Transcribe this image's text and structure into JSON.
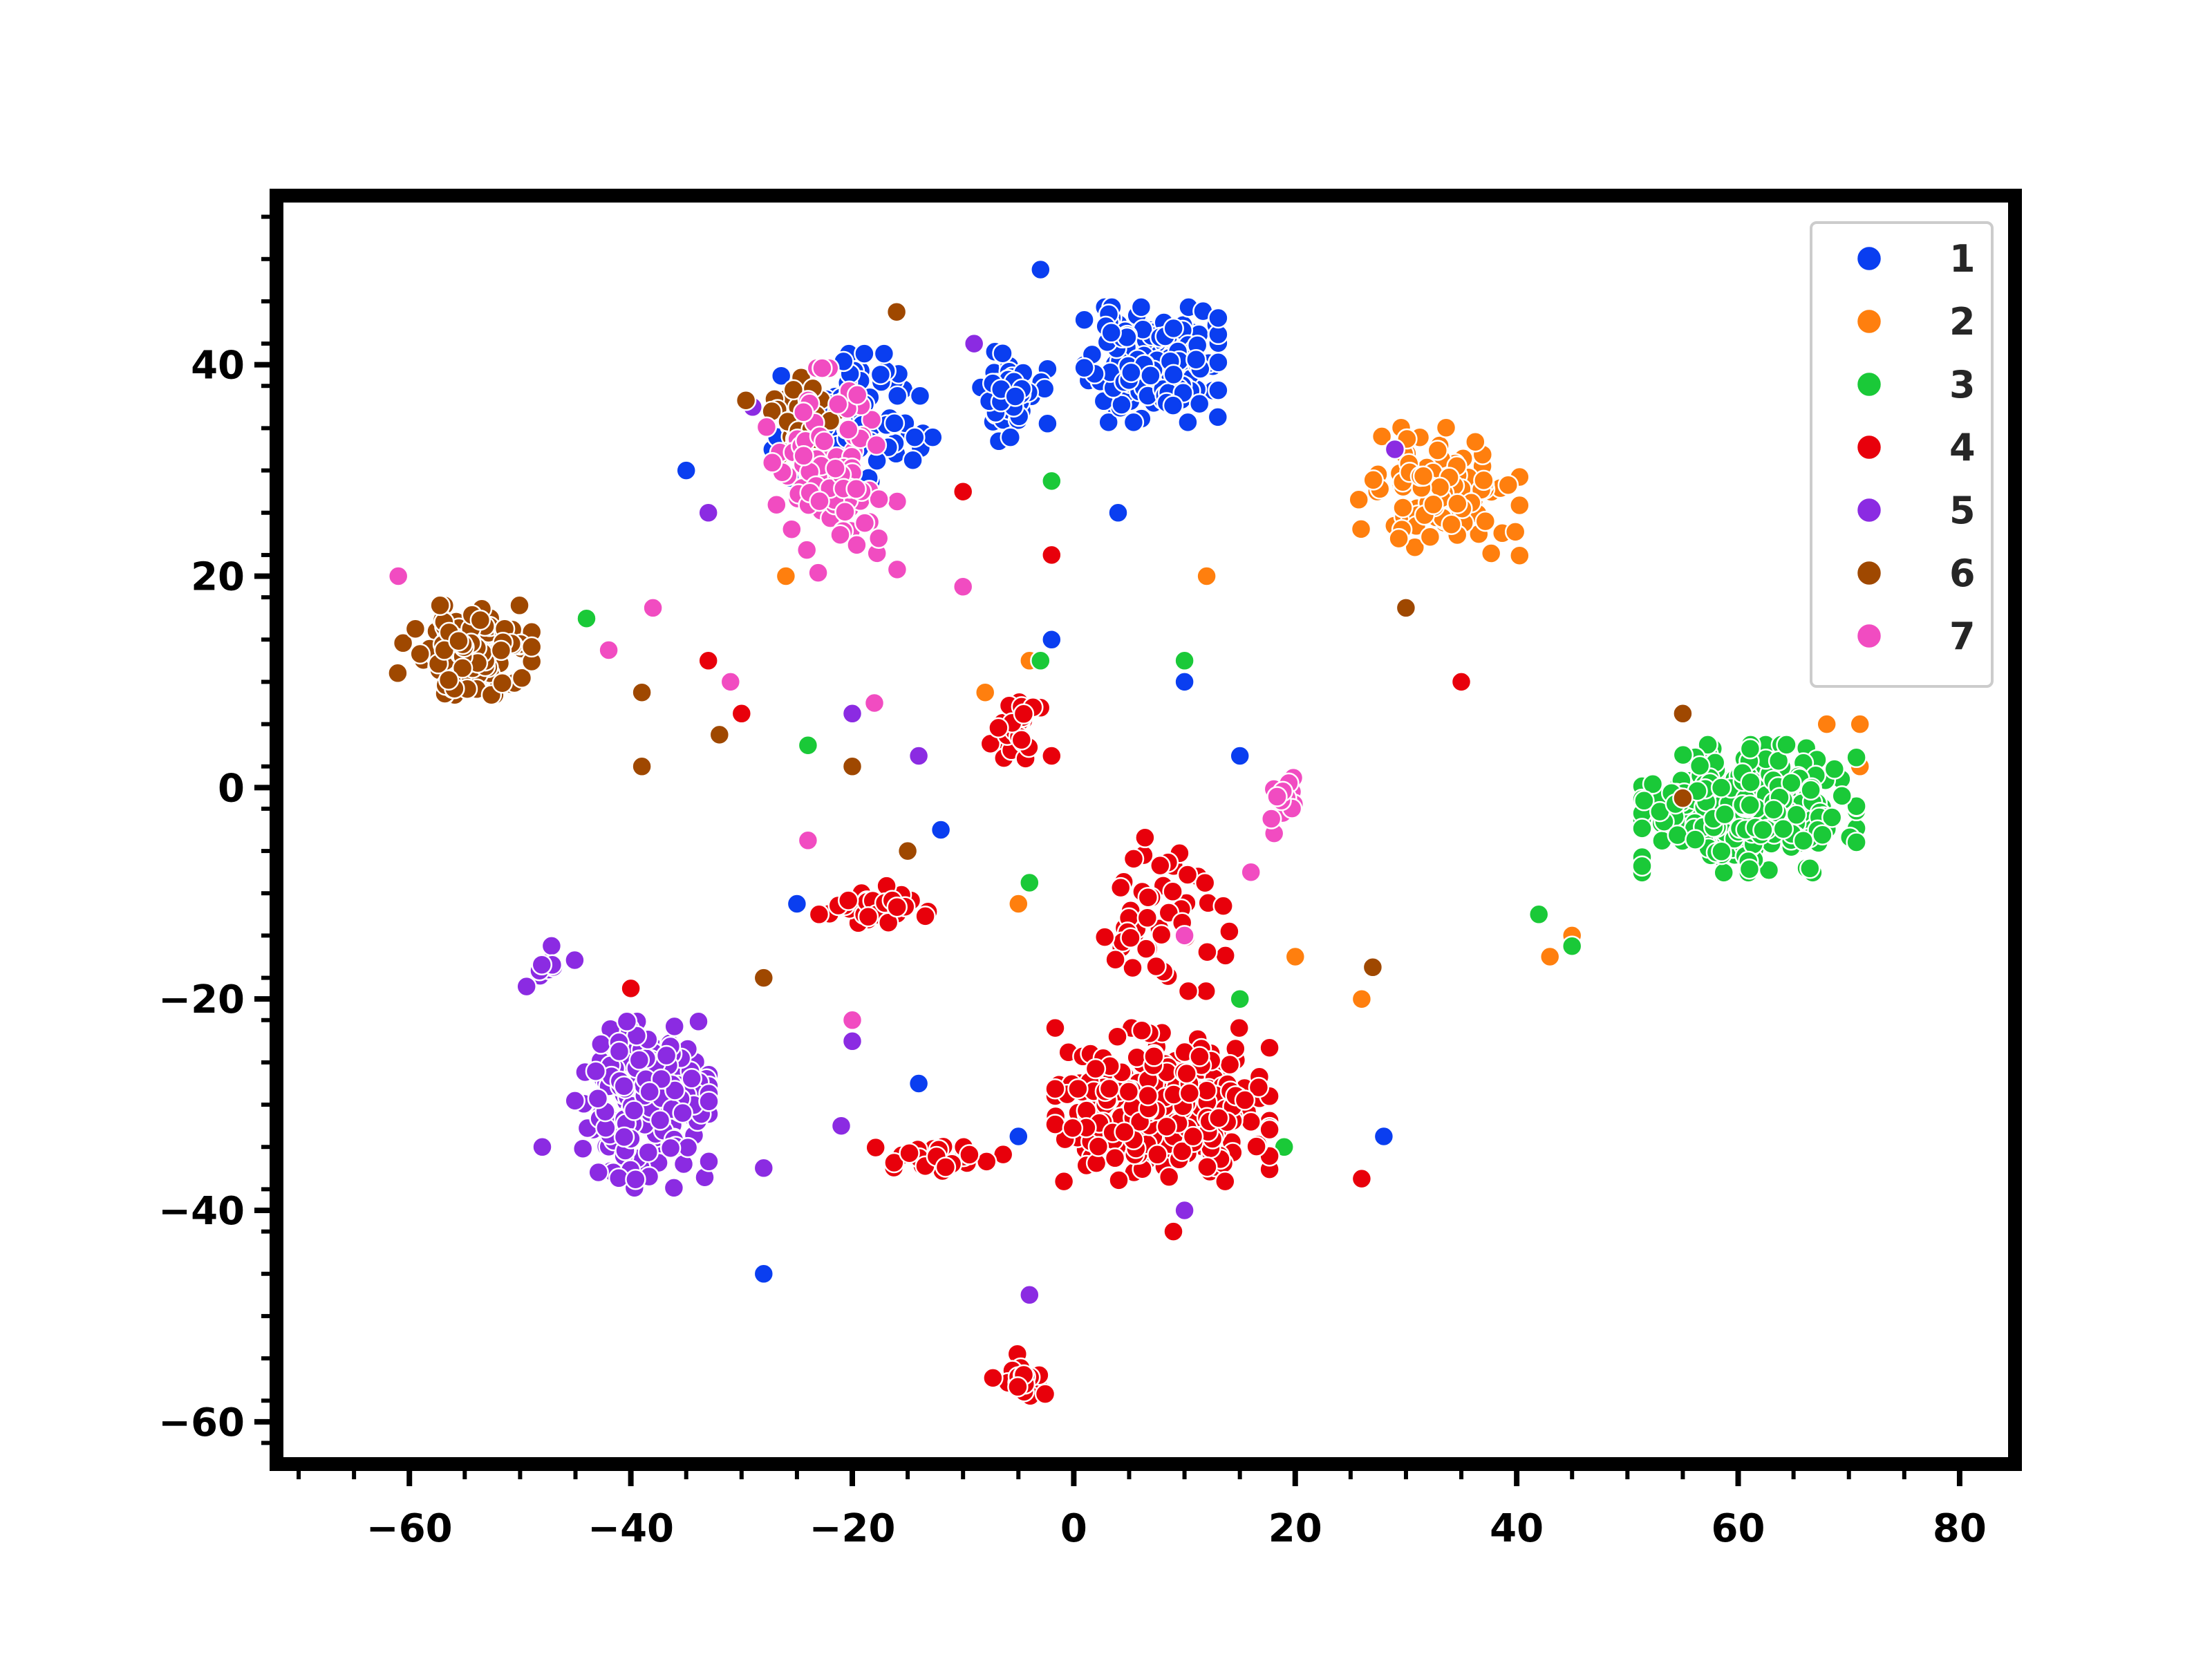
{
  "chart_data": {
    "type": "scatter",
    "title": "",
    "xlabel": "",
    "ylabel": "",
    "xlim": [
      -72,
      85
    ],
    "ylim": [
      -64,
      56
    ],
    "x_ticks": [
      -60,
      -40,
      -20,
      0,
      20,
      40,
      60,
      80
    ],
    "y_ticks": [
      -60,
      -40,
      -20,
      0,
      20,
      40
    ],
    "x_tick_labels": [
      "−60",
      "−40",
      "−20",
      "0",
      "20",
      "40",
      "60",
      "80"
    ],
    "y_tick_labels": [
      "−60",
      "−40",
      "−20",
      "0",
      "20",
      "40"
    ],
    "grid": false,
    "legend_position": "top-right",
    "series": [
      {
        "name": "1",
        "color": "#0a3ef0",
        "clusters": [
          {
            "center": [
              7,
              40
            ],
            "spread": [
              5,
              4.5
            ],
            "count": 170,
            "seed": 11
          },
          {
            "center": [
              -20,
              35
            ],
            "spread": [
              6,
              5
            ],
            "count": 80,
            "seed": 12
          },
          {
            "center": [
              -6,
              37
            ],
            "spread": [
              3,
              3.5
            ],
            "count": 45,
            "seed": 13
          }
        ],
        "points": [
          [
            -3,
            49
          ],
          [
            -35,
            30
          ],
          [
            10,
            10
          ],
          [
            15,
            3
          ],
          [
            -12,
            -4
          ],
          [
            -25,
            -11
          ],
          [
            -14,
            -28
          ],
          [
            -5,
            -33
          ],
          [
            28,
            -33
          ],
          [
            4,
            26
          ],
          [
            -28,
            -46
          ],
          [
            -2,
            14
          ]
        ]
      },
      {
        "name": "2",
        "color": "#ff7f0e",
        "clusters": [
          {
            "center": [
              33,
              28
            ],
            "spread": [
              6,
              5
            ],
            "count": 110,
            "seed": 21
          }
        ],
        "points": [
          [
            45,
            -14
          ],
          [
            43,
            -16
          ],
          [
            68,
            6
          ],
          [
            71,
            2
          ],
          [
            71,
            6
          ],
          [
            12,
            20
          ],
          [
            -8,
            9
          ],
          [
            20,
            -16
          ],
          [
            -5,
            -11
          ],
          [
            26,
            -20
          ],
          [
            -4,
            12
          ],
          [
            -26,
            20
          ]
        ]
      },
      {
        "name": "3",
        "color": "#1ac938",
        "clusters": [
          {
            "center": [
              61,
              -2
            ],
            "spread": [
              8,
              5
            ],
            "count": 330,
            "seed": 31
          }
        ],
        "points": [
          [
            42,
            -12
          ],
          [
            45,
            -15
          ],
          [
            -24,
            4
          ],
          [
            -3,
            12
          ],
          [
            -2,
            29
          ],
          [
            10,
            12
          ],
          [
            4,
            -34
          ],
          [
            19,
            -34
          ],
          [
            15,
            -20
          ],
          [
            -4,
            -9
          ],
          [
            -44,
            16
          ]
        ]
      },
      {
        "name": "4",
        "color": "#e8000b",
        "clusters": [
          {
            "center": [
              8,
              -30
            ],
            "spread": [
              8,
              6
            ],
            "count": 320,
            "seed": 41
          },
          {
            "center": [
              -18,
              -11
            ],
            "spread": [
              4,
              1.5
            ],
            "count": 30,
            "seed": 42
          },
          {
            "center": [
              -5,
              -56
            ],
            "spread": [
              2,
              2
            ],
            "count": 20,
            "seed": 43
          },
          {
            "center": [
              -5,
              5
            ],
            "spread": [
              2.5,
              3.5
            ],
            "count": 25,
            "seed": 44
          },
          {
            "center": [
              8,
              -12
            ],
            "spread": [
              5,
              6
            ],
            "count": 50,
            "seed": 45
          },
          {
            "center": [
              -12,
              -35
            ],
            "spread": [
              5,
              1.5
            ],
            "count": 25,
            "seed": 46
          }
        ],
        "points": [
          [
            35,
            10
          ],
          [
            -30,
            7
          ],
          [
            -23,
            -12
          ],
          [
            -2,
            22
          ],
          [
            -33,
            12
          ],
          [
            26,
            -37
          ],
          [
            9,
            -42
          ],
          [
            -40,
            -19
          ],
          [
            -2,
            3
          ],
          [
            -10,
            28
          ]
        ]
      },
      {
        "name": "5",
        "color": "#8b2be2",
        "clusters": [
          {
            "center": [
              -39,
              -30
            ],
            "spread": [
              5,
              6.5
            ],
            "count": 210,
            "seed": 51
          },
          {
            "center": [
              -47,
              -17
            ],
            "spread": [
              2,
              2
            ],
            "count": 10,
            "seed": 52
          }
        ],
        "points": [
          [
            -28,
            -36
          ],
          [
            -14,
            3
          ],
          [
            -4,
            -48
          ],
          [
            -20,
            7
          ],
          [
            -9,
            42
          ],
          [
            -29,
            36
          ],
          [
            -21,
            -32
          ],
          [
            29,
            32
          ],
          [
            -33,
            26
          ],
          [
            -48,
            -34
          ],
          [
            10,
            -40
          ],
          [
            -20,
            -24
          ]
        ]
      },
      {
        "name": "6",
        "color": "#9f4800",
        "clusters": [
          {
            "center": [
              -55,
              13
            ],
            "spread": [
              5,
              3.5
            ],
            "count": 150,
            "seed": 61
          },
          {
            "center": [
              -25,
              35
            ],
            "spread": [
              4,
              5
            ],
            "count": 35,
            "seed": 62
          }
        ],
        "points": [
          [
            -39,
            2
          ],
          [
            -39,
            9
          ],
          [
            -16,
            45
          ],
          [
            55,
            7
          ],
          [
            55,
            -1
          ],
          [
            -28,
            -18
          ],
          [
            27,
            -17
          ],
          [
            -20,
            2
          ],
          [
            -15,
            -6
          ],
          [
            30,
            17
          ],
          [
            -32,
            5
          ]
        ]
      },
      {
        "name": "7",
        "color": "#f14cc1",
        "clusters": [
          {
            "center": [
              -22,
              30
            ],
            "spread": [
              5,
              8
            ],
            "count": 90,
            "seed": 71
          },
          {
            "center": [
              19,
              -1
            ],
            "spread": [
              1.5,
              3
            ],
            "count": 14,
            "seed": 72
          }
        ],
        "points": [
          [
            -61,
            20
          ],
          [
            -38,
            17
          ],
          [
            -10,
            19
          ],
          [
            -18,
            8
          ],
          [
            -24,
            -5
          ],
          [
            16,
            -8
          ],
          [
            10,
            -14
          ],
          [
            -20,
            -22
          ],
          [
            -31,
            10
          ],
          [
            -42,
            13
          ]
        ]
      }
    ]
  }
}
